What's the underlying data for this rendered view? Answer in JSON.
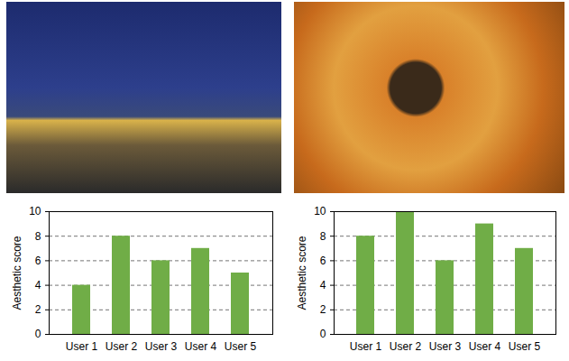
{
  "chart_data": [
    {
      "type": "bar",
      "categories": [
        "User 1",
        "User 2",
        "User 3",
        "User 4",
        "User 5"
      ],
      "values": [
        4,
        8,
        6,
        7,
        5
      ],
      "color": "#70ad47",
      "y_label": "Aesthetic score",
      "ylim": [
        0,
        10
      ],
      "yticks": [
        0,
        2,
        4,
        6,
        8,
        10
      ],
      "grid": true
    },
    {
      "type": "bar",
      "categories": [
        "User 1",
        "User 2",
        "User 3",
        "User 4",
        "User 5"
      ],
      "values": [
        8,
        10,
        6,
        9,
        7
      ],
      "color": "#70ad47",
      "y_label": "Aesthetic score",
      "ylim": [
        0,
        10
      ],
      "yticks": [
        0,
        2,
        4,
        6,
        8,
        10
      ],
      "grid": true
    }
  ]
}
